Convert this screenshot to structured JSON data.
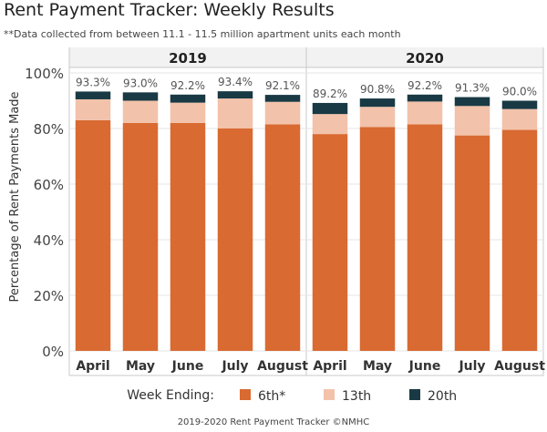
{
  "title": "Rent Payment Tracker: Weekly Results",
  "subtitle": "**Data collected from between 11.1 - 11.5 million apartment units each month",
  "footer": "2019-2020 Rent Payment Tracker ©NMHC",
  "legend": {
    "title": "Week Ending:",
    "position": "bottom"
  },
  "chart_data": {
    "type": "bar",
    "stacked": true,
    "ylabel": "Percentage of Rent Payments Made",
    "ylim": [
      0,
      100
    ],
    "yticks": [
      "0%",
      "20%",
      "40%",
      "60%",
      "80%",
      "100%"
    ],
    "grid": true,
    "groups": [
      "2019",
      "2020"
    ],
    "categories": [
      "April",
      "May",
      "June",
      "July",
      "August"
    ],
    "series": [
      {
        "name": "6th*",
        "color": "#d96a32",
        "values": {
          "2019": [
            83.0,
            82.0,
            82.0,
            80.0,
            81.5
          ],
          "2020": [
            78.0,
            80.5,
            81.5,
            77.5,
            79.5
          ]
        }
      },
      {
        "name": "13th",
        "color": "#f2c2aa",
        "values": {
          "2019": [
            7.5,
            8.0,
            7.3,
            10.8,
            8.1
          ],
          "2020": [
            7.2,
            7.3,
            8.2,
            10.6,
            7.5
          ]
        }
      },
      {
        "name": "20th",
        "color": "#193a44",
        "values": {
          "2019": [
            2.8,
            3.0,
            2.9,
            2.6,
            2.5
          ],
          "2020": [
            4.0,
            3.0,
            2.5,
            3.2,
            3.0
          ]
        }
      }
    ],
    "totals": {
      "2019": [
        "93.3%",
        "93.0%",
        "92.2%",
        "93.4%",
        "92.1%"
      ],
      "2020": [
        "89.2%",
        "90.8%",
        "92.2%",
        "91.3%",
        "90.0%"
      ]
    }
  }
}
